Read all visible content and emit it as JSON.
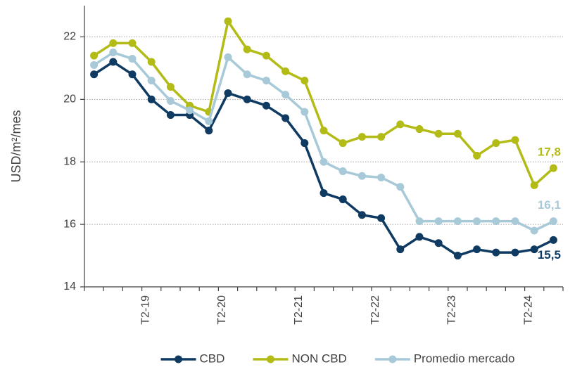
{
  "chart_data": {
    "type": "line",
    "y_label": "USD/m²/mes",
    "categories": [
      null,
      null,
      null,
      "T2-19",
      null,
      null,
      null,
      "T2-20",
      null,
      null,
      null,
      "T2-21",
      null,
      null,
      null,
      "T2-22",
      null,
      null,
      null,
      "T2-23",
      null,
      null,
      null,
      "T2-24",
      null
    ],
    "series": [
      {
        "name": "CBD",
        "color": "#0f3a62",
        "values": [
          20.8,
          21.2,
          20.8,
          20.0,
          19.5,
          19.5,
          19.0,
          20.2,
          20.0,
          19.8,
          19.4,
          18.6,
          17.0,
          16.8,
          16.3,
          16.2,
          15.2,
          15.6,
          15.4,
          15.0,
          15.2,
          15.1,
          15.1,
          15.2,
          15.5
        ],
        "value_labels": [
          null,
          null,
          null,
          null,
          null,
          null,
          null,
          null,
          null,
          null,
          null,
          null,
          null,
          null,
          null,
          null,
          null,
          null,
          null,
          null,
          null,
          null,
          null,
          null,
          "15,5"
        ]
      },
      {
        "name": "NON CBD",
        "color": "#b3bb16",
        "values": [
          21.4,
          21.8,
          21.8,
          21.2,
          20.4,
          19.8,
          19.6,
          22.5,
          21.6,
          21.4,
          20.9,
          20.6,
          19.0,
          18.6,
          18.8,
          18.8,
          19.2,
          19.05,
          18.9,
          18.9,
          18.2,
          18.6,
          18.7,
          17.25,
          17.8
        ],
        "value_labels": [
          null,
          null,
          null,
          null,
          null,
          null,
          null,
          null,
          null,
          null,
          null,
          null,
          null,
          null,
          null,
          null,
          null,
          null,
          null,
          null,
          null,
          null,
          null,
          null,
          "17,8"
        ]
      },
      {
        "name": "Promedio mercado",
        "color": "#a7c9d8",
        "values": [
          21.1,
          21.5,
          21.3,
          20.6,
          19.95,
          19.65,
          19.3,
          21.35,
          20.8,
          20.6,
          20.15,
          19.6,
          18.0,
          17.7,
          17.55,
          17.5,
          17.2,
          16.1,
          16.1,
          16.1,
          16.1,
          16.1,
          16.1,
          15.8,
          16.1
        ],
        "value_labels": [
          null,
          null,
          null,
          null,
          null,
          null,
          null,
          null,
          null,
          null,
          null,
          null,
          null,
          null,
          null,
          null,
          null,
          null,
          null,
          null,
          null,
          null,
          null,
          null,
          "16,1"
        ]
      }
    ],
    "ylim": [
      14,
      23
    ],
    "yticks": [
      14,
      16,
      18,
      20,
      22
    ],
    "grid": true,
    "legend": "bottom"
  }
}
